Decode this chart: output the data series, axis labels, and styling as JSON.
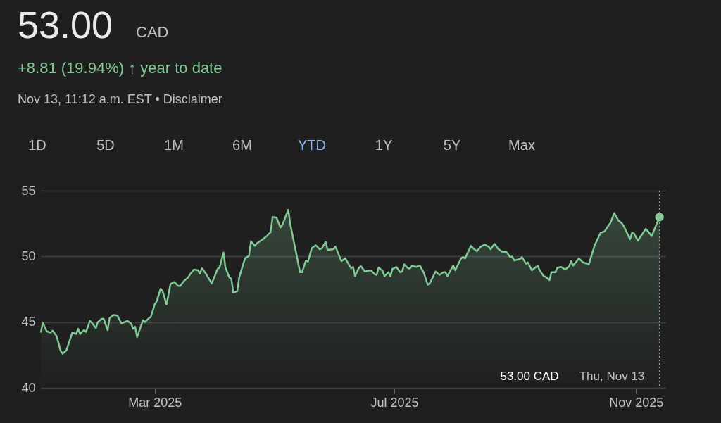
{
  "chart_data": {
    "type": "area",
    "title": "53.00",
    "subtitle": "+8.81 (19.94%) ↑ year to date",
    "annotations": [
      "CAD",
      "Nov 13, 11:12 a.m. EST • Disclaimer",
      "1D",
      "5D",
      "1M",
      "6M",
      "YTD",
      "1Y",
      "5Y",
      "Max",
      "53.00 CAD",
      "Thu, Nov 13"
    ],
    "xlim": [
      "2025-01-02",
      "2025-11-16"
    ],
    "xticks": [
      {
        "value": "2025-03-01",
        "label": "Mar 2025"
      },
      {
        "value": "2025-07-01",
        "label": "Jul 2025"
      },
      {
        "value": "2025-11-01",
        "label": "Nov 2025"
      }
    ],
    "ylim": [
      40,
      55
    ],
    "yticks": [
      40,
      45,
      50,
      55
    ],
    "grid": "y",
    "marker": "none",
    "line_style": "solid",
    "ref_lines": [
      {
        "axis": "x",
        "value": "2025-11-13",
        "label": null,
        "color": "#9aa0a6",
        "line_style": "dotted"
      }
    ],
    "series": [
      {
        "color": "#81c995",
        "x": [
          "2025-01-02",
          "2025-01-03",
          "2025-01-05",
          "2025-01-07",
          "2025-01-08",
          "2025-01-10",
          "2025-01-12",
          "2025-01-13",
          "2025-01-15",
          "2025-01-17",
          "2025-01-18",
          "2025-01-20",
          "2025-01-21",
          "2025-01-22",
          "2025-01-24",
          "2025-01-25",
          "2025-01-27",
          "2025-01-28",
          "2025-01-30",
          "2025-01-31",
          "2025-02-02",
          "2025-02-03",
          "2025-02-05",
          "2025-02-06",
          "2025-02-08",
          "2025-02-10",
          "2025-02-12",
          "2025-02-15",
          "2025-02-17",
          "2025-02-18",
          "2025-02-19",
          "2025-02-20",
          "2025-02-23",
          "2025-02-24",
          "2025-02-26",
          "2025-02-27",
          "2025-03-01",
          "2025-03-02",
          "2025-03-04",
          "2025-03-05",
          "2025-03-07",
          "2025-03-08",
          "2025-03-09",
          "2025-03-11",
          "2025-03-13",
          "2025-03-14",
          "2025-03-16",
          "2025-03-18",
          "2025-03-19",
          "2025-03-21",
          "2025-03-23",
          "2025-03-24",
          "2025-03-25",
          "2025-03-27",
          "2025-03-28",
          "2025-03-30",
          "2025-03-31",
          "2025-04-02",
          "2025-04-03",
          "2025-04-05",
          "2025-04-06",
          "2025-04-08",
          "2025-04-09",
          "2025-04-10",
          "2025-04-12",
          "2025-04-13",
          "2025-04-15",
          "2025-04-16",
          "2025-04-18",
          "2025-04-19",
          "2025-04-21",
          "2025-04-22",
          "2025-04-25",
          "2025-04-27",
          "2025-04-29",
          "2025-04-30",
          "2025-05-02",
          "2025-05-04",
          "2025-05-05",
          "2025-05-08",
          "2025-05-09",
          "2025-05-14",
          "2025-05-15",
          "2025-05-17",
          "2025-05-18",
          "2025-05-20",
          "2025-05-22",
          "2025-05-24",
          "2025-05-25",
          "2025-05-27",
          "2025-05-28",
          "2025-05-31",
          "2025-06-01",
          "2025-06-04",
          "2025-06-06",
          "2025-06-09",
          "2025-06-10",
          "2025-06-11",
          "2025-06-13",
          "2025-06-14",
          "2025-06-16",
          "2025-06-19",
          "2025-06-21",
          "2025-06-22",
          "2025-06-23",
          "2025-06-25",
          "2025-06-26",
          "2025-06-28",
          "2025-06-29",
          "2025-06-30",
          "2025-07-02",
          "2025-07-04",
          "2025-07-05",
          "2025-07-06",
          "2025-07-08",
          "2025-07-09",
          "2025-07-10",
          "2025-07-12",
          "2025-07-14",
          "2025-07-16",
          "2025-07-18",
          "2025-07-19",
          "2025-07-22",
          "2025-07-24",
          "2025-07-26",
          "2025-07-27",
          "2025-07-28",
          "2025-07-30",
          "2025-07-31",
          "2025-08-01",
          "2025-08-04",
          "2025-08-05",
          "2025-08-06",
          "2025-08-09",
          "2025-08-10",
          "2025-08-12",
          "2025-08-14",
          "2025-08-16",
          "2025-08-18",
          "2025-08-19",
          "2025-08-21",
          "2025-08-23",
          "2025-08-25",
          "2025-08-27",
          "2025-08-29",
          "2025-08-30",
          "2025-08-31",
          "2025-09-03",
          "2025-09-04",
          "2025-09-06",
          "2025-09-07",
          "2025-09-09",
          "2025-09-12",
          "2025-09-13",
          "2025-09-15",
          "2025-09-16",
          "2025-09-18",
          "2025-09-19",
          "2025-09-21",
          "2025-09-22",
          "2025-09-24",
          "2025-09-26",
          "2025-09-28",
          "2025-09-29",
          "2025-09-30",
          "2025-10-03",
          "2025-10-05",
          "2025-10-08",
          "2025-10-11",
          "2025-10-14",
          "2025-10-16",
          "2025-10-18",
          "2025-10-19",
          "2025-10-21",
          "2025-10-23",
          "2025-10-25",
          "2025-10-26",
          "2025-10-29",
          "2025-10-30",
          "2025-10-31",
          "2025-11-02",
          "2025-11-04",
          "2025-11-06",
          "2025-11-08",
          "2025-11-09",
          "2025-11-13"
        ],
        "values": [
          44.2,
          44.95,
          44.3,
          44.2,
          44.35,
          43.95,
          42.85,
          42.6,
          42.85,
          43.75,
          44.2,
          44.1,
          44.5,
          44.1,
          44.4,
          44.25,
          45.1,
          44.95,
          44.55,
          45.0,
          45.25,
          45.25,
          44.4,
          45.3,
          45.55,
          45.5,
          44.9,
          45.1,
          44.9,
          44.5,
          44.65,
          43.85,
          45.15,
          45.0,
          45.3,
          45.4,
          46.35,
          46.6,
          47.55,
          47.35,
          46.35,
          47.1,
          47.9,
          48.05,
          47.75,
          47.75,
          48.15,
          48.4,
          48.65,
          49.0,
          48.95,
          48.7,
          49.1,
          48.7,
          48.45,
          47.95,
          48.3,
          49.05,
          49.15,
          50.3,
          49.15,
          48.4,
          48.3,
          47.25,
          47.35,
          48.4,
          49.4,
          49.85,
          50.05,
          51.15,
          50.8,
          51.0,
          51.3,
          51.55,
          51.85,
          53.0,
          52.95,
          52.2,
          52.4,
          53.55,
          52.45,
          48.8,
          48.8,
          49.7,
          49.6,
          50.65,
          50.85,
          50.55,
          50.6,
          51.1,
          50.5,
          50.55,
          50.75,
          49.65,
          49.85,
          49.1,
          49.2,
          48.5,
          49.15,
          49.25,
          48.85,
          48.95,
          48.65,
          48.6,
          49.15,
          48.9,
          48.5,
          48.8,
          48.5,
          49.05,
          49.2,
          48.8,
          48.85,
          49.4,
          49.1,
          49.1,
          49.3,
          49.2,
          49.3,
          48.75,
          47.85,
          47.95,
          48.85,
          48.6,
          48.8,
          48.8,
          48.5,
          49.05,
          49.3,
          48.95,
          49.85,
          49.95,
          49.85,
          50.8,
          50.65,
          50.4,
          50.75,
          50.9,
          50.75,
          50.55,
          50.95,
          50.55,
          50.35,
          50.35,
          49.95,
          50.0,
          49.7,
          49.8,
          49.95,
          49.45,
          49.55,
          48.95,
          49.3,
          48.95,
          48.5,
          48.45,
          48.2,
          48.8,
          48.8,
          49.15,
          49.2,
          49.0,
          49.25,
          49.65,
          49.3,
          49.85,
          49.55,
          49.4,
          50.85,
          51.8,
          51.9,
          52.35,
          52.55,
          53.3,
          52.75,
          52.5,
          52.25,
          51.3,
          51.8,
          51.75,
          51.2,
          51.65,
          52.1,
          51.75,
          51.55,
          53.0
        ]
      }
    ]
  }
}
